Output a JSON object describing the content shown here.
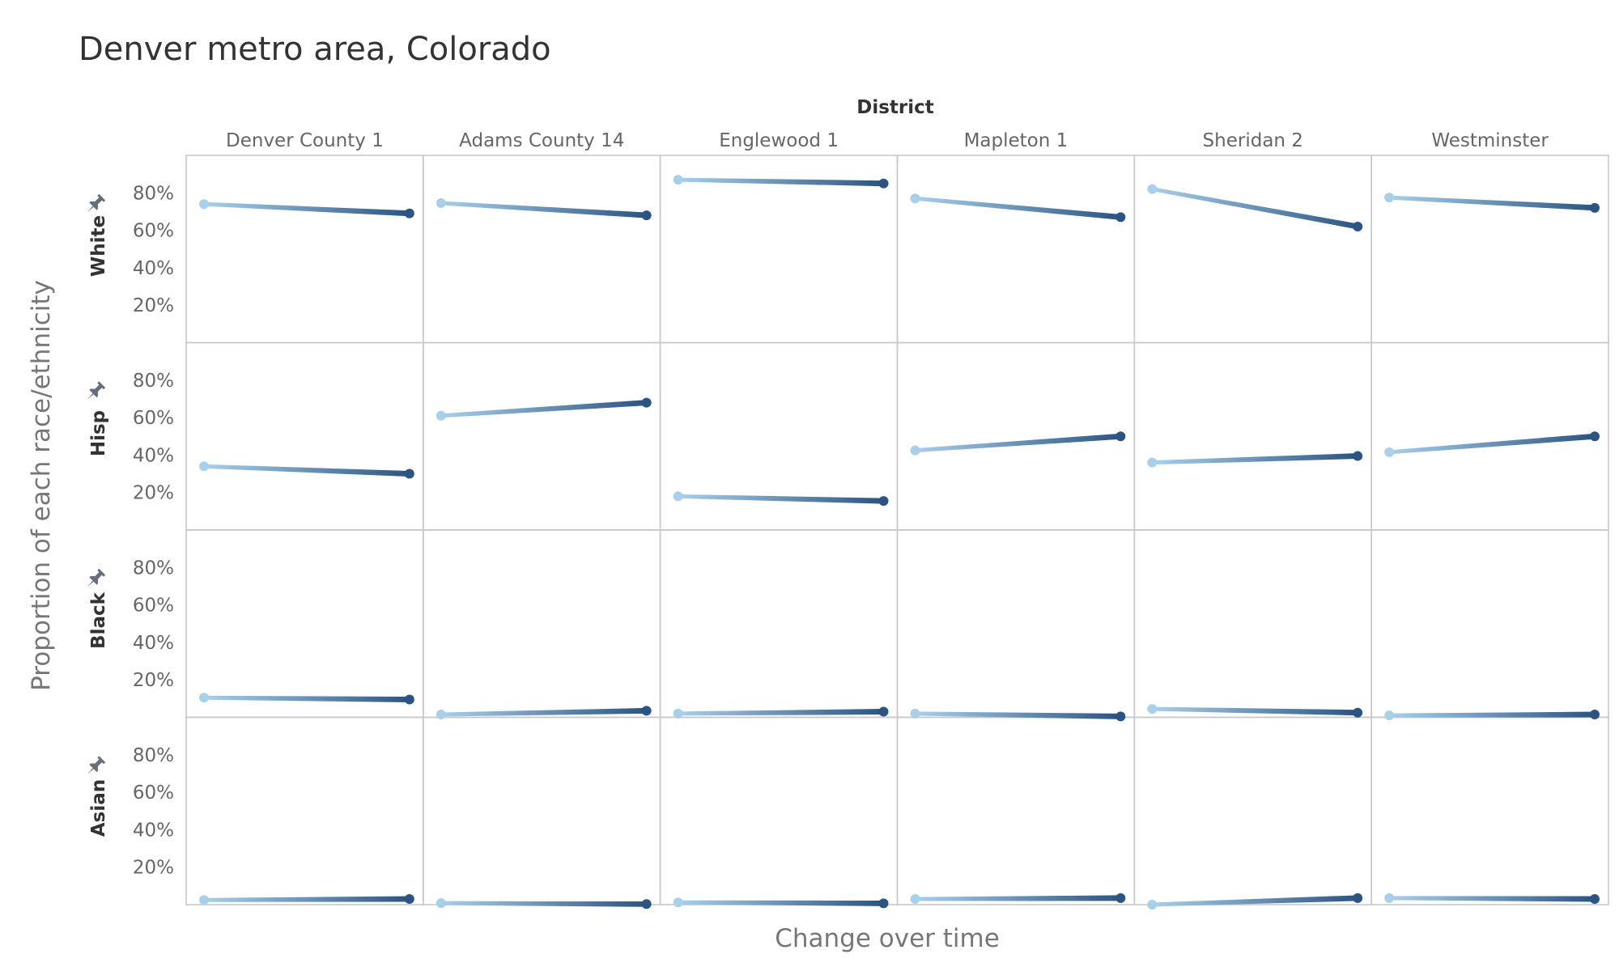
{
  "title": "Denver metro area, Colorado",
  "chart_data": {
    "type": "line",
    "title": "Denver metro area, Colorado",
    "column_group_label": "District",
    "xlabel": "Change over time",
    "ylabel": "Proportion of each race/ethnicity",
    "ylim": [
      0,
      1
    ],
    "yticks": [
      "20%",
      "40%",
      "60%",
      "80%"
    ],
    "ytick_values": [
      0.2,
      0.4,
      0.6,
      0.8
    ],
    "grid": false,
    "districts": [
      "Denver County 1",
      "Adams County 14",
      "Englewood 1",
      "Mapleton 1",
      "Sheridan 2",
      "Westminster"
    ],
    "races": [
      "White",
      "Hisp",
      "Black",
      "Asian"
    ],
    "colors": {
      "start": "#a8d0eb",
      "end": "#2c5482"
    },
    "panels": [
      [
        [
          0.74,
          0.69
        ],
        [
          0.745,
          0.68
        ],
        [
          0.87,
          0.85
        ],
        [
          0.77,
          0.67
        ],
        [
          0.82,
          0.62
        ],
        [
          0.775,
          0.72
        ]
      ],
      [
        [
          0.34,
          0.3
        ],
        [
          0.61,
          0.68
        ],
        [
          0.18,
          0.155
        ],
        [
          0.425,
          0.5
        ],
        [
          0.36,
          0.395
        ],
        [
          0.415,
          0.5
        ]
      ],
      [
        [
          0.105,
          0.095
        ],
        [
          0.015,
          0.035
        ],
        [
          0.02,
          0.03
        ],
        [
          0.02,
          0.005
        ],
        [
          0.045,
          0.025
        ],
        [
          0.01,
          0.015
        ]
      ],
      [
        [
          0.025,
          0.03
        ],
        [
          0.008,
          0.003
        ],
        [
          0.012,
          0.007
        ],
        [
          0.03,
          0.035
        ],
        [
          0.0,
          0.035
        ],
        [
          0.035,
          0.03
        ]
      ]
    ]
  }
}
